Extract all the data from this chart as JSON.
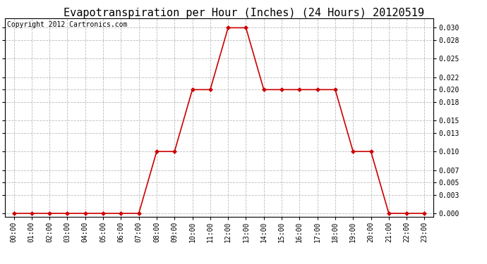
{
  "title": "Evapotranspiration per Hour (Inches) (24 Hours) 20120519",
  "copyright_text": "Copyright 2012 Cartronics.com",
  "hours": [
    "00:00",
    "01:00",
    "02:00",
    "03:00",
    "04:00",
    "05:00",
    "06:00",
    "07:00",
    "08:00",
    "09:00",
    "10:00",
    "11:00",
    "12:00",
    "13:00",
    "14:00",
    "15:00",
    "16:00",
    "17:00",
    "18:00",
    "19:00",
    "20:00",
    "21:00",
    "22:00",
    "23:00"
  ],
  "values": [
    0.0,
    0.0,
    0.0,
    0.0,
    0.0,
    0.0,
    0.0,
    0.0,
    0.01,
    0.01,
    0.02,
    0.02,
    0.03,
    0.03,
    0.02,
    0.02,
    0.02,
    0.02,
    0.02,
    0.01,
    0.01,
    0.0,
    0.0,
    0.0
  ],
  "y_ticks": [
    0.0,
    0.003,
    0.005,
    0.007,
    0.01,
    0.013,
    0.015,
    0.018,
    0.02,
    0.022,
    0.025,
    0.028,
    0.03
  ],
  "ylim_min": -0.0005,
  "ylim_max": 0.0315,
  "line_color": "#cc0000",
  "marker": "D",
  "marker_size": 3,
  "bg_color": "#ffffff",
  "grid_color": "#bbbbbb",
  "title_fontsize": 11,
  "copyright_fontsize": 7,
  "tick_fontsize": 7,
  "ytick_fontsize": 7
}
